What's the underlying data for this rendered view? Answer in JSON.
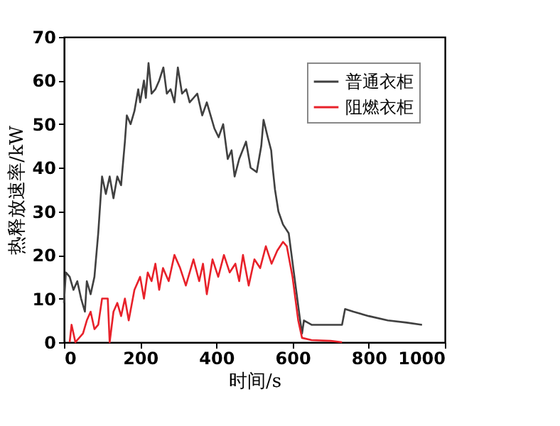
{
  "chart_data": {
    "type": "line",
    "xlabel": "时间/s",
    "ylabel": "热释放速率/kW",
    "xlim": [
      0,
      1000
    ],
    "ylim": [
      0,
      70
    ],
    "xticks": [
      0,
      200,
      400,
      600,
      800,
      1000
    ],
    "yticks": [
      0,
      10,
      20,
      30,
      40,
      50,
      60,
      70
    ],
    "grid": false,
    "legend": "top right",
    "marker": "none",
    "line_style": "solid",
    "series": [
      {
        "name": "普通衣柜",
        "color": "#404040",
        "x": [
          0,
          5,
          15,
          25,
          35,
          45,
          55,
          60,
          70,
          80,
          90,
          100,
          110,
          120,
          130,
          140,
          150,
          160,
          165,
          175,
          185,
          195,
          200,
          210,
          215,
          222,
          230,
          240,
          250,
          261,
          270,
          280,
          290,
          299,
          310,
          321,
          330,
          340,
          350,
          363,
          375,
          385,
          395,
          406,
          418,
          430,
          440,
          448,
          460,
          478,
          490,
          506,
          518,
          524,
          535,
          544,
          548,
          554,
          563,
          575,
          590,
          605,
          620,
          625,
          630,
          650,
          700,
          730,
          738,
          760,
          800,
          850,
          900,
          940
        ],
        "values": [
          9,
          16,
          15,
          12,
          14,
          10,
          7,
          14,
          11,
          15,
          25,
          38,
          34,
          38,
          33,
          38,
          36,
          46,
          52,
          50,
          53,
          58,
          55,
          60,
          56,
          64,
          57,
          58,
          60,
          63,
          57,
          58,
          55,
          63,
          57,
          58,
          55,
          56,
          57,
          52,
          55,
          52,
          49,
          47,
          50,
          42,
          44,
          38,
          42,
          46,
          40,
          39,
          45,
          51,
          47,
          44,
          40,
          35,
          30,
          27,
          25,
          15,
          5,
          2,
          5,
          4,
          4,
          4,
          7.6,
          7,
          6,
          5,
          4.5,
          4
        ]
      },
      {
        "name": "阻燃衣柜",
        "color": "#e8212a",
        "x": [
          15,
          20,
          30,
          50,
          60,
          70,
          80,
          90,
          100,
          115,
          120,
          130,
          140,
          150,
          160,
          170,
          185,
          200,
          210,
          220,
          230,
          240,
          250,
          260,
          275,
          290,
          305,
          320,
          340,
          355,
          365,
          375,
          390,
          405,
          420,
          435,
          450,
          460,
          470,
          485,
          500,
          515,
          530,
          545,
          560,
          575,
          585,
          600,
          615,
          625,
          650,
          700,
          730
        ],
        "values": [
          0,
          4,
          0,
          2,
          5,
          7,
          3,
          4,
          10,
          10,
          0,
          7,
          9,
          6,
          10,
          5,
          12,
          15,
          10,
          16,
          14,
          18,
          12,
          17,
          14,
          20,
          17,
          13,
          19,
          14,
          18,
          11,
          19,
          15,
          20,
          16,
          18,
          14,
          20,
          13,
          19,
          17,
          22,
          18,
          21,
          23,
          22,
          15,
          5,
          1,
          0.5,
          0.3,
          0
        ]
      }
    ]
  }
}
